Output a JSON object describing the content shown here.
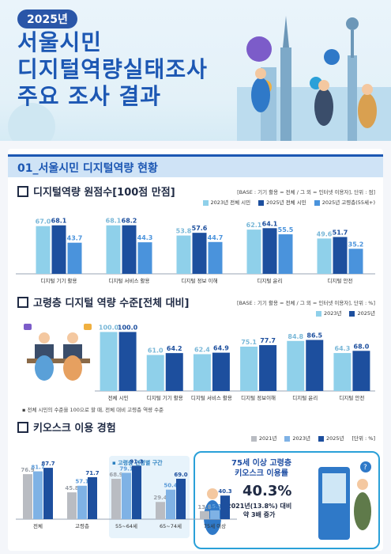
{
  "hero": {
    "year": "2025년",
    "title_lines": [
      "서울시민",
      "디지털역량실태조사",
      "주요 조사 결과"
    ]
  },
  "section": {
    "title": "01_서울시민 디지털역량 현황"
  },
  "charts": {
    "score": {
      "subtitle": "디지털역량 원점수[100점 만점]",
      "note": "[BASE : 기기 활용 = 전체 / 그 외 = 인터넷 이용자], 단위 : 점]",
      "legend": [
        "2023년 전체 시민",
        "2025년 전체 시민",
        "2025년 고령층(55세+)"
      ]
    },
    "senior": {
      "subtitle": "고령층 디지털 역량 수준[전체 대비]",
      "note": "[BASE : 기기 활용 = 전체 / 그 외 = 인터넷 이용자], 단위 : %]",
      "legend": [
        "2023년",
        "2025년"
      ],
      "footnote": "▪ 전체 시민의 수준을 100으로 할 때, 전체 대비 고령층 역량 수준"
    },
    "kiosk": {
      "subtitle": "키오스크 이용 경험",
      "note": "[단위 : %]",
      "legend": [
        "2021년",
        "2023년",
        "2025년"
      ],
      "highlight_label": "▪ 고령층 연령별 구간"
    }
  },
  "callout": {
    "title_lines": [
      "75세 이상 고령층",
      "키오스크 이용률"
    ],
    "percent": "40.3%",
    "desc_lines": [
      "2021년(13.8%) 대비",
      "약 3배 증가"
    ]
  },
  "colors": {
    "light": "#8fd0ea",
    "mid": "#2f79c8",
    "dark": "#1d4f9e",
    "gray": "#b9bcc2",
    "lightblue": "#7fb2e5"
  },
  "chart_data": [
    {
      "type": "bar",
      "title": "디지털역량 원점수[100점 만점]",
      "categories": [
        "디지털 기기 활용",
        "디지털 서비스 활용",
        "디지털 정보 이해",
        "디지털 윤리",
        "디지털 안전"
      ],
      "series": [
        {
          "name": "2023년 전체 시민",
          "values": [
            67.0,
            68.1,
            53.8,
            62.1,
            49.6
          ]
        },
        {
          "name": "2025년 전체 시민",
          "values": [
            68.1,
            68.2,
            57.6,
            64.1,
            51.7
          ]
        },
        {
          "name": "2025년 고령층(55세+)",
          "values": [
            43.7,
            44.3,
            44.7,
            55.5,
            35.2
          ]
        }
      ],
      "labels": [
        [
          "67.0",
          "68.1",
          "53.8",
          "62.1",
          "49.6"
        ],
        [
          "68.1",
          "68.2",
          "57.6",
          "64.1",
          "51.7"
        ],
        [
          "43.7",
          "44.3",
          "44.7",
          "55.5",
          "35.2"
        ]
      ],
      "ylim": [
        0,
        80
      ]
    },
    {
      "type": "bar",
      "title": "고령층 디지털 역량 수준[전체 대비]",
      "categories": [
        "전체 시민",
        "디지털 기기 활용",
        "디지털 서비스 활용",
        "디지털 정보이해",
        "디지털 윤리",
        "디지털 안전"
      ],
      "series": [
        {
          "name": "2023년",
          "values": [
            100.0,
            61.0,
            62.4,
            75.1,
            84.8,
            64.3
          ]
        },
        {
          "name": "2025년",
          "values": [
            100.0,
            64.2,
            64.9,
            77.7,
            86.5,
            68.0
          ]
        }
      ],
      "labels": [
        [
          "100.0",
          "61.0",
          "62.4",
          "75.1",
          "84.8",
          "64.3"
        ],
        [
          "100.0",
          "64.2",
          "64.9",
          "77.7",
          "86.5",
          "68.0"
        ]
      ],
      "ylim": [
        0,
        110
      ]
    },
    {
      "type": "bar",
      "title": "키오스크 이용 경험",
      "categories": [
        "전체",
        "고령층",
        "55~64세",
        "65~74세",
        "75세 이상"
      ],
      "series": [
        {
          "name": "2021년",
          "values": [
            76.9,
            45.8,
            68.9,
            29.4,
            13.8
          ]
        },
        {
          "name": "2023년",
          "values": [
            81.7,
            57.1,
            79.1,
            50.4,
            15.1
          ]
        },
        {
          "name": "2025년",
          "values": [
            87.7,
            71.7,
            91.3,
            69.0,
            40.3
          ]
        }
      ],
      "labels": [
        [
          "76.9",
          "45.8",
          "68.9",
          "29.4",
          "13.8"
        ],
        [
          "81.7",
          "57.1",
          "79.1",
          "50.4",
          "15.1"
        ],
        [
          "87.7",
          "71.7",
          "91.3",
          "69.0",
          "40.3"
        ]
      ],
      "ylim": [
        0,
        100
      ]
    }
  ]
}
